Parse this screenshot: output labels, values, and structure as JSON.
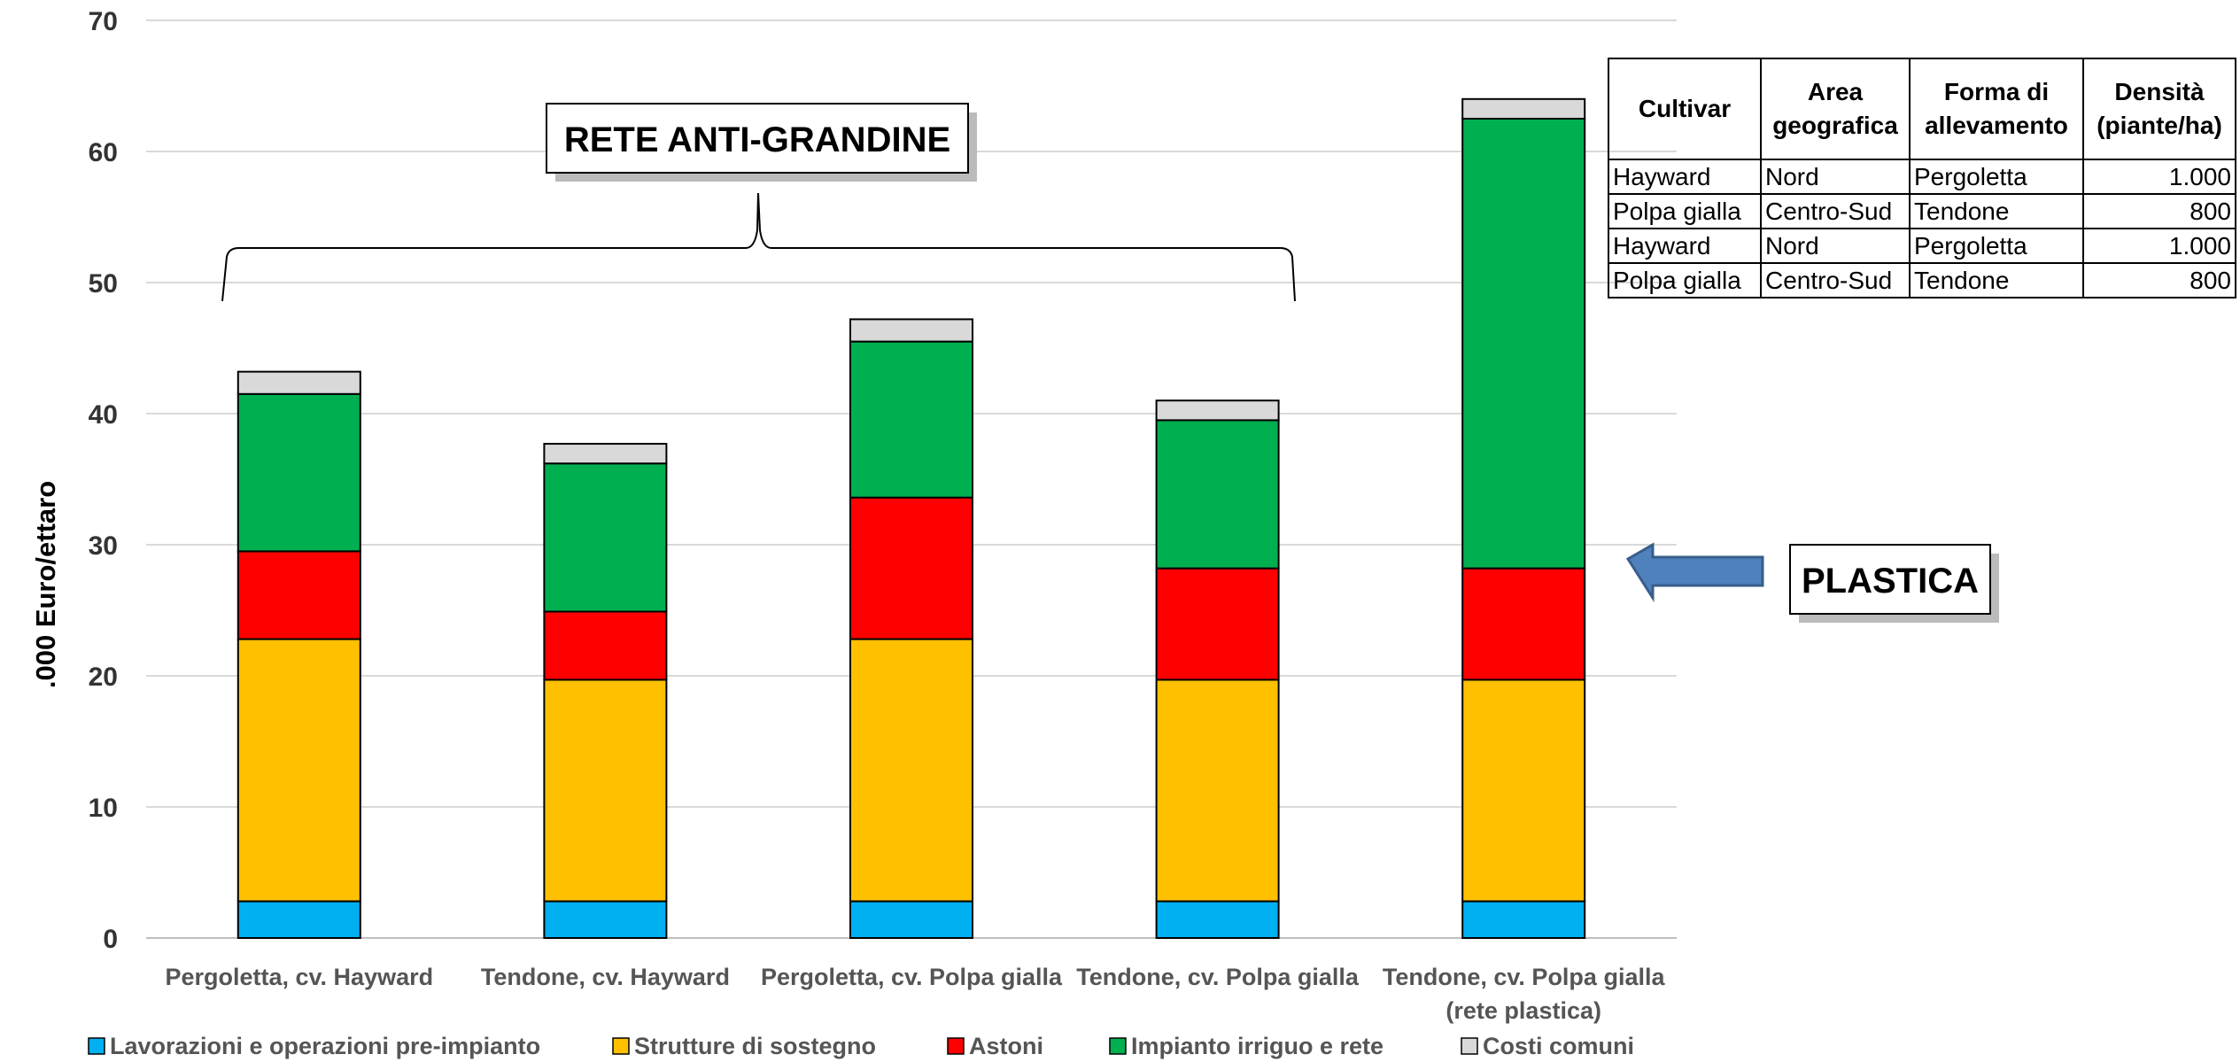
{
  "chart_data": {
    "type": "bar",
    "stacked": true,
    "ylabel": ".000 Euro/ettaro",
    "ylim": [
      0,
      70
    ],
    "yticks": [
      0,
      10,
      20,
      30,
      40,
      50,
      60,
      70
    ],
    "grid": true,
    "legend_position": "bottom",
    "categories": [
      "Pergoletta, cv. Hayward",
      "Tendone, cv. Hayward",
      "Pergoletta, cv. Polpa gialla",
      "Tendone, cv. Polpa gialla",
      "Tendone, cv. Polpa gialla (rete plastica)"
    ],
    "series": [
      {
        "name": "Lavorazioni e operazioni pre-impianto",
        "color": "#00B0F0",
        "values": [
          2.8,
          2.8,
          2.8,
          2.8,
          2.8
        ]
      },
      {
        "name": "Strutture di sostegno",
        "color": "#FFC000",
        "values": [
          20.0,
          16.9,
          20.0,
          16.9,
          16.9
        ]
      },
      {
        "name": "Astoni",
        "color": "#FF0000",
        "values": [
          6.7,
          5.2,
          10.8,
          8.5,
          8.5
        ]
      },
      {
        "name": "Impianto irriguo e rete",
        "color": "#00B050",
        "values": [
          12.0,
          11.3,
          11.9,
          11.3,
          34.3
        ]
      },
      {
        "name": "Costi comuni",
        "color": "#D9D9D9",
        "values": [
          1.7,
          1.5,
          1.7,
          1.5,
          1.5
        ]
      }
    ],
    "annotations": {
      "bracket_label": "RETE ANTI-GRANDINE",
      "arrow_label": "PLASTICA"
    }
  },
  "table": {
    "headers": [
      "Cultivar",
      "Area geografica",
      "Forma di allevamento",
      "Densità (piante/ha)"
    ],
    "rows": [
      [
        "Hayward",
        "Nord",
        "Pergoletta",
        "1.000"
      ],
      [
        "Polpa gialla",
        "Centro-Sud",
        "Tendone",
        "800"
      ],
      [
        "Hayward",
        "Nord",
        "Pergoletta",
        "1.000"
      ],
      [
        "Polpa gialla",
        "Centro-Sud",
        "Tendone",
        "800"
      ]
    ]
  }
}
